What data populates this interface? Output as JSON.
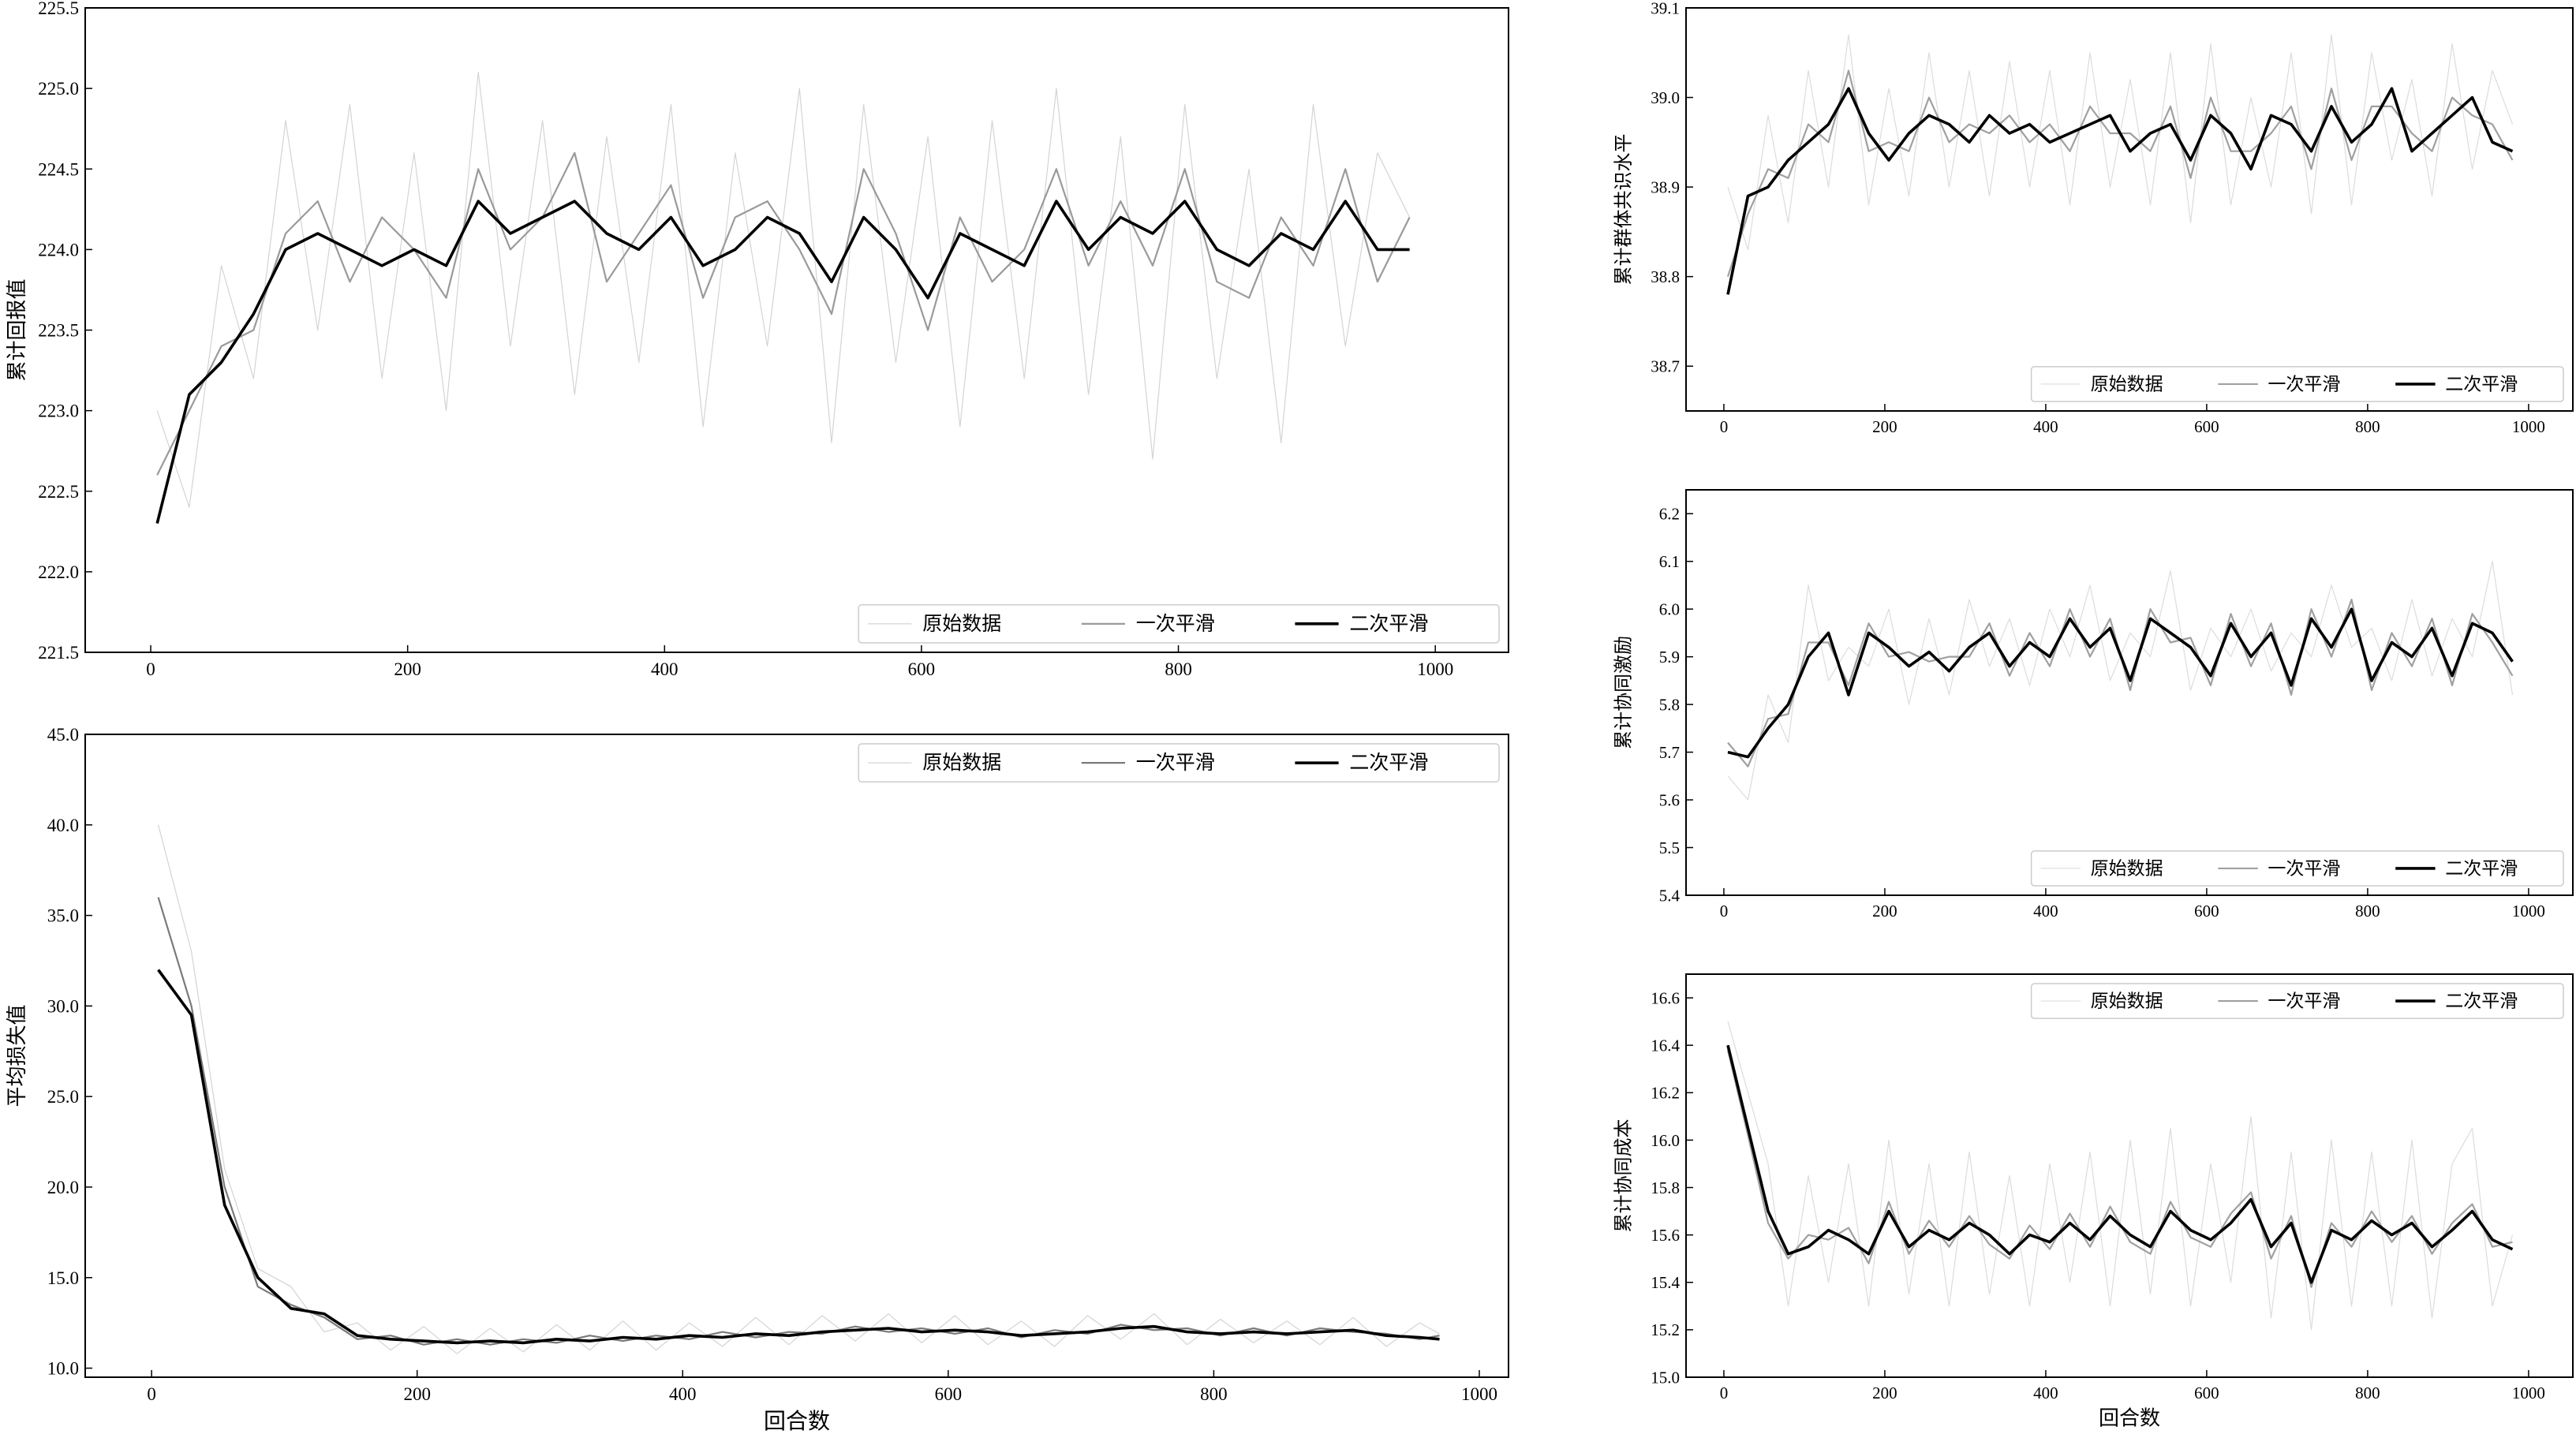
{
  "chart_data": [
    {
      "type": "line",
      "ylabel": "累计回报值",
      "x": [
        5,
        30,
        55,
        80,
        105,
        130,
        155,
        180,
        205,
        230,
        255,
        280,
        305,
        330,
        355,
        380,
        405,
        430,
        455,
        480,
        505,
        530,
        555,
        580,
        605,
        630,
        655,
        680,
        705,
        730,
        755,
        780,
        805,
        830,
        855,
        880,
        905,
        930,
        955,
        980
      ],
      "series": [
        {
          "name": "原始数据",
          "color": "#d4d4d4",
          "values": [
            223.0,
            222.4,
            223.9,
            223.2,
            224.8,
            223.5,
            224.9,
            223.2,
            224.6,
            223.0,
            225.1,
            223.4,
            224.8,
            223.1,
            224.7,
            223.3,
            224.9,
            222.9,
            224.6,
            223.4,
            225.0,
            222.8,
            224.9,
            223.3,
            224.7,
            222.9,
            224.8,
            223.2,
            225.0,
            223.1,
            224.7,
            222.7,
            224.9,
            223.2,
            224.5,
            222.8,
            224.9,
            223.4,
            224.6,
            224.2
          ]
        },
        {
          "name": "一次平滑",
          "color": "#9a9a9a",
          "values": [
            222.6,
            223.0,
            223.4,
            223.5,
            224.1,
            224.3,
            223.8,
            224.2,
            224.0,
            223.7,
            224.5,
            224.0,
            224.2,
            224.6,
            223.8,
            224.1,
            224.4,
            223.7,
            224.2,
            224.3,
            224.0,
            223.6,
            224.5,
            224.1,
            223.5,
            224.2,
            223.8,
            224.0,
            224.5,
            223.9,
            224.3,
            223.9,
            224.5,
            223.8,
            223.7,
            224.2,
            223.9,
            224.5,
            223.8,
            224.2
          ]
        },
        {
          "name": "二次平滑",
          "color": "#000000",
          "values": [
            222.3,
            223.1,
            223.3,
            223.6,
            224.0,
            224.1,
            224.0,
            223.9,
            224.0,
            223.9,
            224.3,
            224.1,
            224.2,
            224.3,
            224.1,
            224.0,
            224.2,
            223.9,
            224.0,
            224.2,
            224.1,
            223.8,
            224.2,
            224.0,
            223.7,
            224.1,
            224.0,
            223.9,
            224.3,
            224.0,
            224.2,
            224.1,
            224.3,
            224.0,
            223.9,
            224.1,
            224.0,
            224.3,
            224.0,
            224.0
          ]
        }
      ],
      "xlim": [
        -51,
        1057
      ],
      "ylim": [
        221.5,
        225.5
      ],
      "xticks": [
        0,
        200,
        400,
        600,
        800,
        1000
      ],
      "yticks": [
        {
          "value": 221.5,
          "label": "221.5"
        },
        {
          "value": 222,
          "label": "222.0"
        },
        {
          "value": 222.5,
          "label": "222.5"
        },
        {
          "value": 223,
          "label": "223.0"
        },
        {
          "value": 223.5,
          "label": "223.5"
        },
        {
          "value": 224,
          "label": "224.0"
        },
        {
          "value": 224.5,
          "label": "224.5"
        },
        {
          "value": 225,
          "label": "225.0"
        },
        {
          "value": 225.5,
          "label": "225.5"
        }
      ],
      "legend": "lower right"
    },
    {
      "type": "line",
      "ylabel": "平均损失值",
      "xlabel": "回合数",
      "x": [
        5,
        30,
        55,
        80,
        105,
        130,
        155,
        180,
        205,
        230,
        255,
        280,
        305,
        330,
        355,
        380,
        405,
        430,
        455,
        480,
        505,
        530,
        555,
        580,
        605,
        630,
        655,
        680,
        705,
        730,
        755,
        780,
        805,
        830,
        855,
        880,
        905,
        930,
        955,
        970
      ],
      "series": [
        {
          "name": "原始数据",
          "color": "#d4d4d4",
          "values": [
            40,
            33,
            21,
            15.5,
            14.5,
            12.0,
            12.5,
            11.0,
            12.3,
            10.8,
            12.2,
            10.9,
            12.4,
            11.0,
            12.6,
            11.0,
            12.5,
            11.2,
            12.8,
            11.3,
            12.9,
            11.5,
            13.0,
            11.4,
            12.9,
            11.3,
            12.6,
            11.2,
            12.9,
            11.6,
            13.0,
            11.3,
            12.7,
            11.4,
            12.6,
            11.3,
            12.8,
            11.2,
            12.5,
            11.9
          ]
        },
        {
          "name": "一次平滑",
          "color": "#7a7a7a",
          "values": [
            36,
            30,
            20,
            14.5,
            13.5,
            12.8,
            11.6,
            11.8,
            11.3,
            11.6,
            11.3,
            11.6,
            11.4,
            11.8,
            11.5,
            11.8,
            11.6,
            12.0,
            11.7,
            12.0,
            11.9,
            12.3,
            12.0,
            12.2,
            11.9,
            12.2,
            11.7,
            12.1,
            11.9,
            12.4,
            12.1,
            12.2,
            11.8,
            12.2,
            11.8,
            12.2,
            12.0,
            11.9,
            11.6,
            11.8
          ]
        },
        {
          "name": "二次平滑",
          "color": "#000000",
          "values": [
            32,
            29.5,
            19,
            15,
            13.3,
            13.0,
            11.8,
            11.6,
            11.5,
            11.4,
            11.5,
            11.4,
            11.6,
            11.5,
            11.7,
            11.6,
            11.8,
            11.7,
            11.9,
            11.8,
            12.0,
            12.1,
            12.2,
            12.0,
            12.1,
            12.0,
            11.8,
            11.9,
            12.0,
            12.2,
            12.3,
            12.0,
            11.9,
            12.0,
            11.9,
            12.0,
            12.1,
            11.8,
            11.7,
            11.6
          ]
        }
      ],
      "xlim": [
        -50,
        1022
      ],
      "ylim": [
        9.5,
        45
      ],
      "xticks": [
        0,
        200,
        400,
        600,
        800,
        1000
      ],
      "yticks": [
        {
          "value": 10,
          "label": "10.0"
        },
        {
          "value": 15,
          "label": "15.0"
        },
        {
          "value": 20,
          "label": "20.0"
        },
        {
          "value": 25,
          "label": "25.0"
        },
        {
          "value": 30,
          "label": "30.0"
        },
        {
          "value": 35,
          "label": "35.0"
        },
        {
          "value": 40,
          "label": "40.0"
        },
        {
          "value": 45,
          "label": "45.0"
        }
      ],
      "legend": "upper right"
    },
    {
      "type": "line",
      "ylabel": "累计群体共识水平",
      "x": [
        5,
        30,
        55,
        80,
        105,
        130,
        155,
        180,
        205,
        230,
        255,
        280,
        305,
        330,
        355,
        380,
        405,
        430,
        455,
        480,
        505,
        530,
        555,
        580,
        605,
        630,
        655,
        680,
        705,
        730,
        755,
        780,
        805,
        830,
        855,
        880,
        905,
        930,
        955,
        980
      ],
      "series": [
        {
          "name": "原始数据",
          "color": "#dcdcdc",
          "values": [
            38.9,
            38.83,
            38.98,
            38.86,
            39.03,
            38.9,
            39.07,
            38.88,
            39.01,
            38.89,
            39.05,
            38.9,
            39.03,
            38.89,
            39.04,
            38.9,
            39.03,
            38.88,
            39.05,
            38.9,
            39.02,
            38.88,
            39.05,
            38.86,
            39.06,
            38.88,
            39.0,
            38.9,
            39.05,
            38.87,
            39.07,
            38.88,
            39.05,
            38.93,
            39.02,
            38.89,
            39.06,
            38.92,
            39.03,
            38.97
          ]
        },
        {
          "name": "一次平滑",
          "color": "#a0a0a0",
          "values": [
            38.8,
            38.87,
            38.92,
            38.91,
            38.97,
            38.95,
            39.03,
            38.94,
            38.95,
            38.94,
            39.0,
            38.95,
            38.97,
            38.96,
            38.98,
            38.95,
            38.97,
            38.94,
            38.99,
            38.96,
            38.96,
            38.94,
            38.99,
            38.91,
            39.0,
            38.94,
            38.94,
            38.96,
            38.99,
            38.92,
            39.01,
            38.93,
            38.99,
            38.99,
            38.96,
            38.94,
            39.0,
            38.98,
            38.97,
            38.93
          ]
        },
        {
          "name": "二次平滑",
          "color": "#000000",
          "values": [
            38.78,
            38.89,
            38.9,
            38.93,
            38.95,
            38.97,
            39.01,
            38.96,
            38.93,
            38.96,
            38.98,
            38.97,
            38.95,
            38.98,
            38.96,
            38.97,
            38.95,
            38.96,
            38.97,
            38.98,
            38.94,
            38.96,
            38.97,
            38.93,
            38.98,
            38.96,
            38.92,
            38.98,
            38.97,
            38.94,
            38.99,
            38.95,
            38.97,
            39.01,
            38.94,
            38.96,
            38.98,
            39.0,
            38.95,
            38.94
          ]
        }
      ],
      "xlim": [
        -47,
        1055
      ],
      "ylim": [
        38.65,
        39.1
      ],
      "xticks": [
        0,
        200,
        400,
        600,
        800,
        1000
      ],
      "yticks": [
        38.7,
        38.8,
        38.9,
        {
          "value": 39,
          "label": "39.0"
        },
        39.1
      ],
      "legend": "lower right"
    },
    {
      "type": "line",
      "ylabel": "累计协同激励",
      "x": [
        5,
        30,
        55,
        80,
        105,
        130,
        155,
        180,
        205,
        230,
        255,
        280,
        305,
        330,
        355,
        380,
        405,
        430,
        455,
        480,
        505,
        530,
        555,
        580,
        605,
        630,
        655,
        680,
        705,
        730,
        755,
        780,
        805,
        830,
        855,
        880,
        905,
        930,
        955,
        980
      ],
      "series": [
        {
          "name": "原始数据",
          "color": "#dcdcdc",
          "values": [
            5.65,
            5.6,
            5.82,
            5.72,
            6.05,
            5.85,
            5.92,
            5.88,
            6.0,
            5.8,
            5.98,
            5.82,
            6.02,
            5.88,
            5.98,
            5.84,
            6.0,
            5.9,
            6.05,
            5.85,
            5.95,
            5.9,
            6.08,
            5.83,
            5.96,
            5.9,
            6.0,
            5.87,
            5.95,
            5.9,
            6.05,
            5.92,
            5.96,
            5.85,
            6.02,
            5.86,
            5.98,
            5.9,
            6.1,
            5.82
          ]
        },
        {
          "name": "一次平滑",
          "color": "#a0a0a0",
          "values": [
            5.72,
            5.67,
            5.77,
            5.78,
            5.93,
            5.93,
            5.84,
            5.97,
            5.9,
            5.91,
            5.89,
            5.9,
            5.9,
            5.97,
            5.86,
            5.95,
            5.88,
            6.0,
            5.9,
            5.98,
            5.83,
            6.0,
            5.93,
            5.94,
            5.84,
            5.99,
            5.88,
            5.97,
            5.82,
            6.0,
            5.9,
            6.02,
            5.83,
            5.95,
            5.88,
            5.98,
            5.84,
            5.99,
            5.93,
            5.86
          ]
        },
        {
          "name": "二次平滑",
          "color": "#000000",
          "values": [
            5.7,
            5.69,
            5.75,
            5.8,
            5.9,
            5.95,
            5.82,
            5.95,
            5.92,
            5.88,
            5.91,
            5.87,
            5.92,
            5.95,
            5.88,
            5.93,
            5.9,
            5.98,
            5.92,
            5.96,
            5.85,
            5.98,
            5.95,
            5.92,
            5.86,
            5.97,
            5.9,
            5.95,
            5.84,
            5.98,
            5.92,
            6.0,
            5.85,
            5.93,
            5.9,
            5.96,
            5.86,
            5.97,
            5.95,
            5.89
          ]
        }
      ],
      "xlim": [
        -47,
        1055
      ],
      "ylim": [
        5.4,
        6.25
      ],
      "xticks": [
        0,
        200,
        400,
        600,
        800,
        1000
      ],
      "yticks": [
        5.4,
        5.5,
        5.6,
        5.7,
        5.8,
        5.9,
        {
          "value": 6,
          "label": "6.0"
        },
        6.1,
        6.2
      ],
      "legend": "lower right"
    },
    {
      "type": "line",
      "ylabel": "累计协同成本",
      "xlabel": "回合数",
      "x": [
        5,
        30,
        55,
        80,
        105,
        130,
        155,
        180,
        205,
        230,
        255,
        280,
        305,
        330,
        355,
        380,
        405,
        430,
        455,
        480,
        505,
        530,
        555,
        580,
        605,
        630,
        655,
        680,
        705,
        730,
        755,
        780,
        805,
        830,
        855,
        880,
        905,
        930,
        955,
        980
      ],
      "series": [
        {
          "name": "原始数据",
          "color": "#dcdcdc",
          "values": [
            16.5,
            16.2,
            15.9,
            15.3,
            15.85,
            15.4,
            15.9,
            15.3,
            16.0,
            15.35,
            15.9,
            15.3,
            15.95,
            15.35,
            15.85,
            15.3,
            15.9,
            15.4,
            15.95,
            15.3,
            16.0,
            15.35,
            16.05,
            15.3,
            15.9,
            15.4,
            16.1,
            15.25,
            15.95,
            15.2,
            16.0,
            15.3,
            15.95,
            15.3,
            16.0,
            15.25,
            15.9,
            16.05,
            15.3,
            15.6
          ]
        },
        {
          "name": "一次平滑",
          "color": "#a0a0a0",
          "values": [
            16.38,
            16.02,
            15.65,
            15.5,
            15.6,
            15.58,
            15.63,
            15.48,
            15.74,
            15.52,
            15.66,
            15.55,
            15.68,
            15.56,
            15.5,
            15.64,
            15.54,
            15.69,
            15.55,
            15.72,
            15.57,
            15.52,
            15.74,
            15.59,
            15.55,
            15.69,
            15.78,
            15.5,
            15.68,
            15.38,
            15.65,
            15.55,
            15.7,
            15.57,
            15.68,
            15.52,
            15.65,
            15.73,
            15.55,
            15.57
          ]
        },
        {
          "name": "二次平滑",
          "color": "#000000",
          "values": [
            16.4,
            16.05,
            15.7,
            15.52,
            15.55,
            15.62,
            15.58,
            15.52,
            15.7,
            15.55,
            15.62,
            15.58,
            15.65,
            15.6,
            15.52,
            15.6,
            15.57,
            15.65,
            15.58,
            15.68,
            15.6,
            15.55,
            15.7,
            15.62,
            15.58,
            15.65,
            15.75,
            15.55,
            15.65,
            15.4,
            15.62,
            15.58,
            15.66,
            15.6,
            15.65,
            15.55,
            15.62,
            15.7,
            15.58,
            15.54
          ]
        }
      ],
      "xlim": [
        -47,
        1055
      ],
      "ylim": [
        15.0,
        16.7
      ],
      "xticks": [
        0,
        200,
        400,
        600,
        800,
        1000
      ],
      "yticks": [
        {
          "value": 15,
          "label": "15.0"
        },
        15.2,
        15.4,
        15.6,
        15.8,
        {
          "value": 16,
          "label": "16.0"
        },
        16.2,
        16.4,
        16.6
      ],
      "legend": "upper right"
    }
  ]
}
